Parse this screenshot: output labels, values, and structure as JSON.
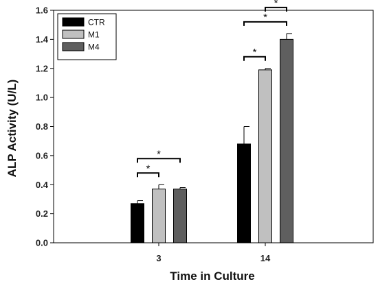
{
  "chart_data": {
    "type": "bar",
    "xlabel": "Time in Culture",
    "ylabel": "ALP Activity (U/L)",
    "ylim": [
      0,
      1.6
    ],
    "yticks": [
      "0.0",
      "0.2",
      "0.4",
      "0.6",
      "0.8",
      "1.0",
      "1.2",
      "1.4",
      "1.6"
    ],
    "categories": [
      "3",
      "14"
    ],
    "legend_position": "top-left",
    "grid": false,
    "series": [
      {
        "name": "CTR",
        "color": "#000000",
        "values": [
          0.27,
          0.68
        ],
        "errors": [
          0.02,
          0.12
        ]
      },
      {
        "name": "M1",
        "color": "#c0c0c0",
        "values": [
          0.37,
          1.19
        ],
        "errors": [
          0.03,
          0.01
        ]
      },
      {
        "name": "M4",
        "color": "#5f5f5f",
        "values": [
          0.37,
          1.4
        ],
        "errors": [
          0.01,
          0.04
        ]
      }
    ],
    "significance": [
      {
        "group": 0,
        "from": 0,
        "to": 1,
        "label": "*"
      },
      {
        "group": 0,
        "from": 0,
        "to": 2,
        "label": "*"
      },
      {
        "group": 1,
        "from": 0,
        "to": 1,
        "label": "*"
      },
      {
        "group": 1,
        "from": 0,
        "to": 2,
        "label": "*"
      },
      {
        "group": 1,
        "from": 1,
        "to": 2,
        "label": "*"
      }
    ]
  }
}
